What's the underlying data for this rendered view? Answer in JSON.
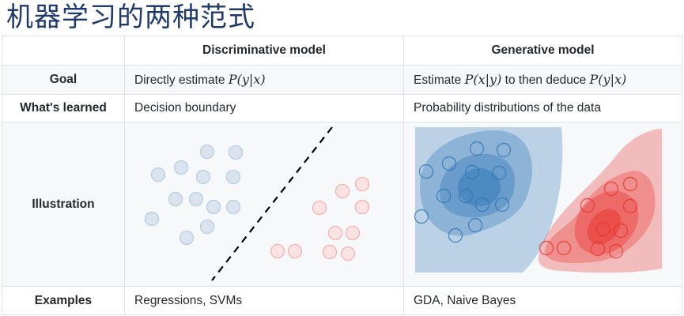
{
  "page_title": "机器学习的两种范式",
  "columns": {
    "discriminative": "Discriminative model",
    "generative": "Generative model"
  },
  "rows": {
    "goal": {
      "label": "Goal",
      "discriminative_prefix": "Directly estimate",
      "discriminative_math": "P(y|x)",
      "generative_prefix": "Estimate",
      "generative_math1": "P(x|y)",
      "generative_mid": "to then deduce",
      "generative_math2": "P(y|x)"
    },
    "learned": {
      "label": "What's learned",
      "discriminative": "Decision boundary",
      "generative": "Probability distributions of the data"
    },
    "illustration": {
      "label": "Illustration"
    },
    "examples": {
      "label": "Examples",
      "discriminative": "Regressions, SVMs",
      "generative": "GDA, Naive Bayes"
    }
  },
  "colors": {
    "title": "#1f3b6e",
    "blue_class": "#b8cde4",
    "red_class": "#f5b3b3",
    "blue_contour": "#2f76b8",
    "red_contour": "#e8332e",
    "border": "#dfe2e5",
    "alt_row": "#f6f8fa"
  }
}
